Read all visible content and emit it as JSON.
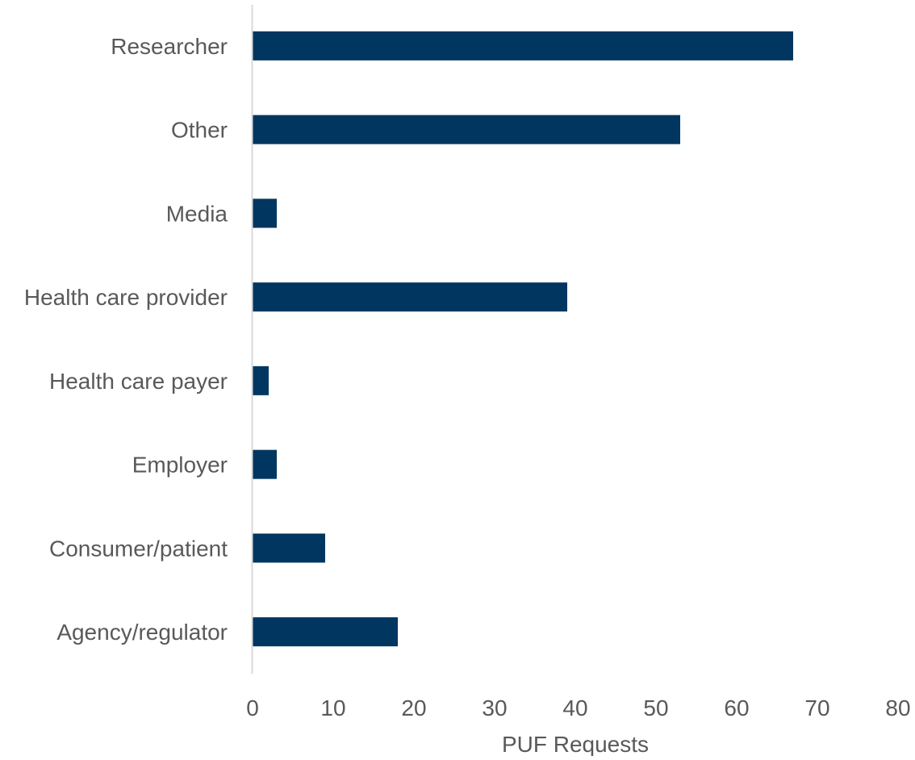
{
  "chart_data": {
    "type": "bar",
    "orientation": "horizontal",
    "title": "",
    "xlabel": "PUF Requests",
    "ylabel": "",
    "categories": [
      "Researcher",
      "Other",
      "Media",
      "Health care provider",
      "Health care payer",
      "Employer",
      "Consumer/patient",
      "Agency/regulator"
    ],
    "values": [
      67,
      53,
      3,
      39,
      2,
      3,
      9,
      18
    ],
    "xlim": [
      0,
      80
    ],
    "xticks": [
      0,
      10,
      20,
      30,
      40,
      50,
      60,
      70,
      80
    ],
    "grid": false,
    "legend": "none",
    "colors": {
      "bar": "#003660",
      "axis": "#d9d9d9",
      "text": "#595959"
    }
  }
}
